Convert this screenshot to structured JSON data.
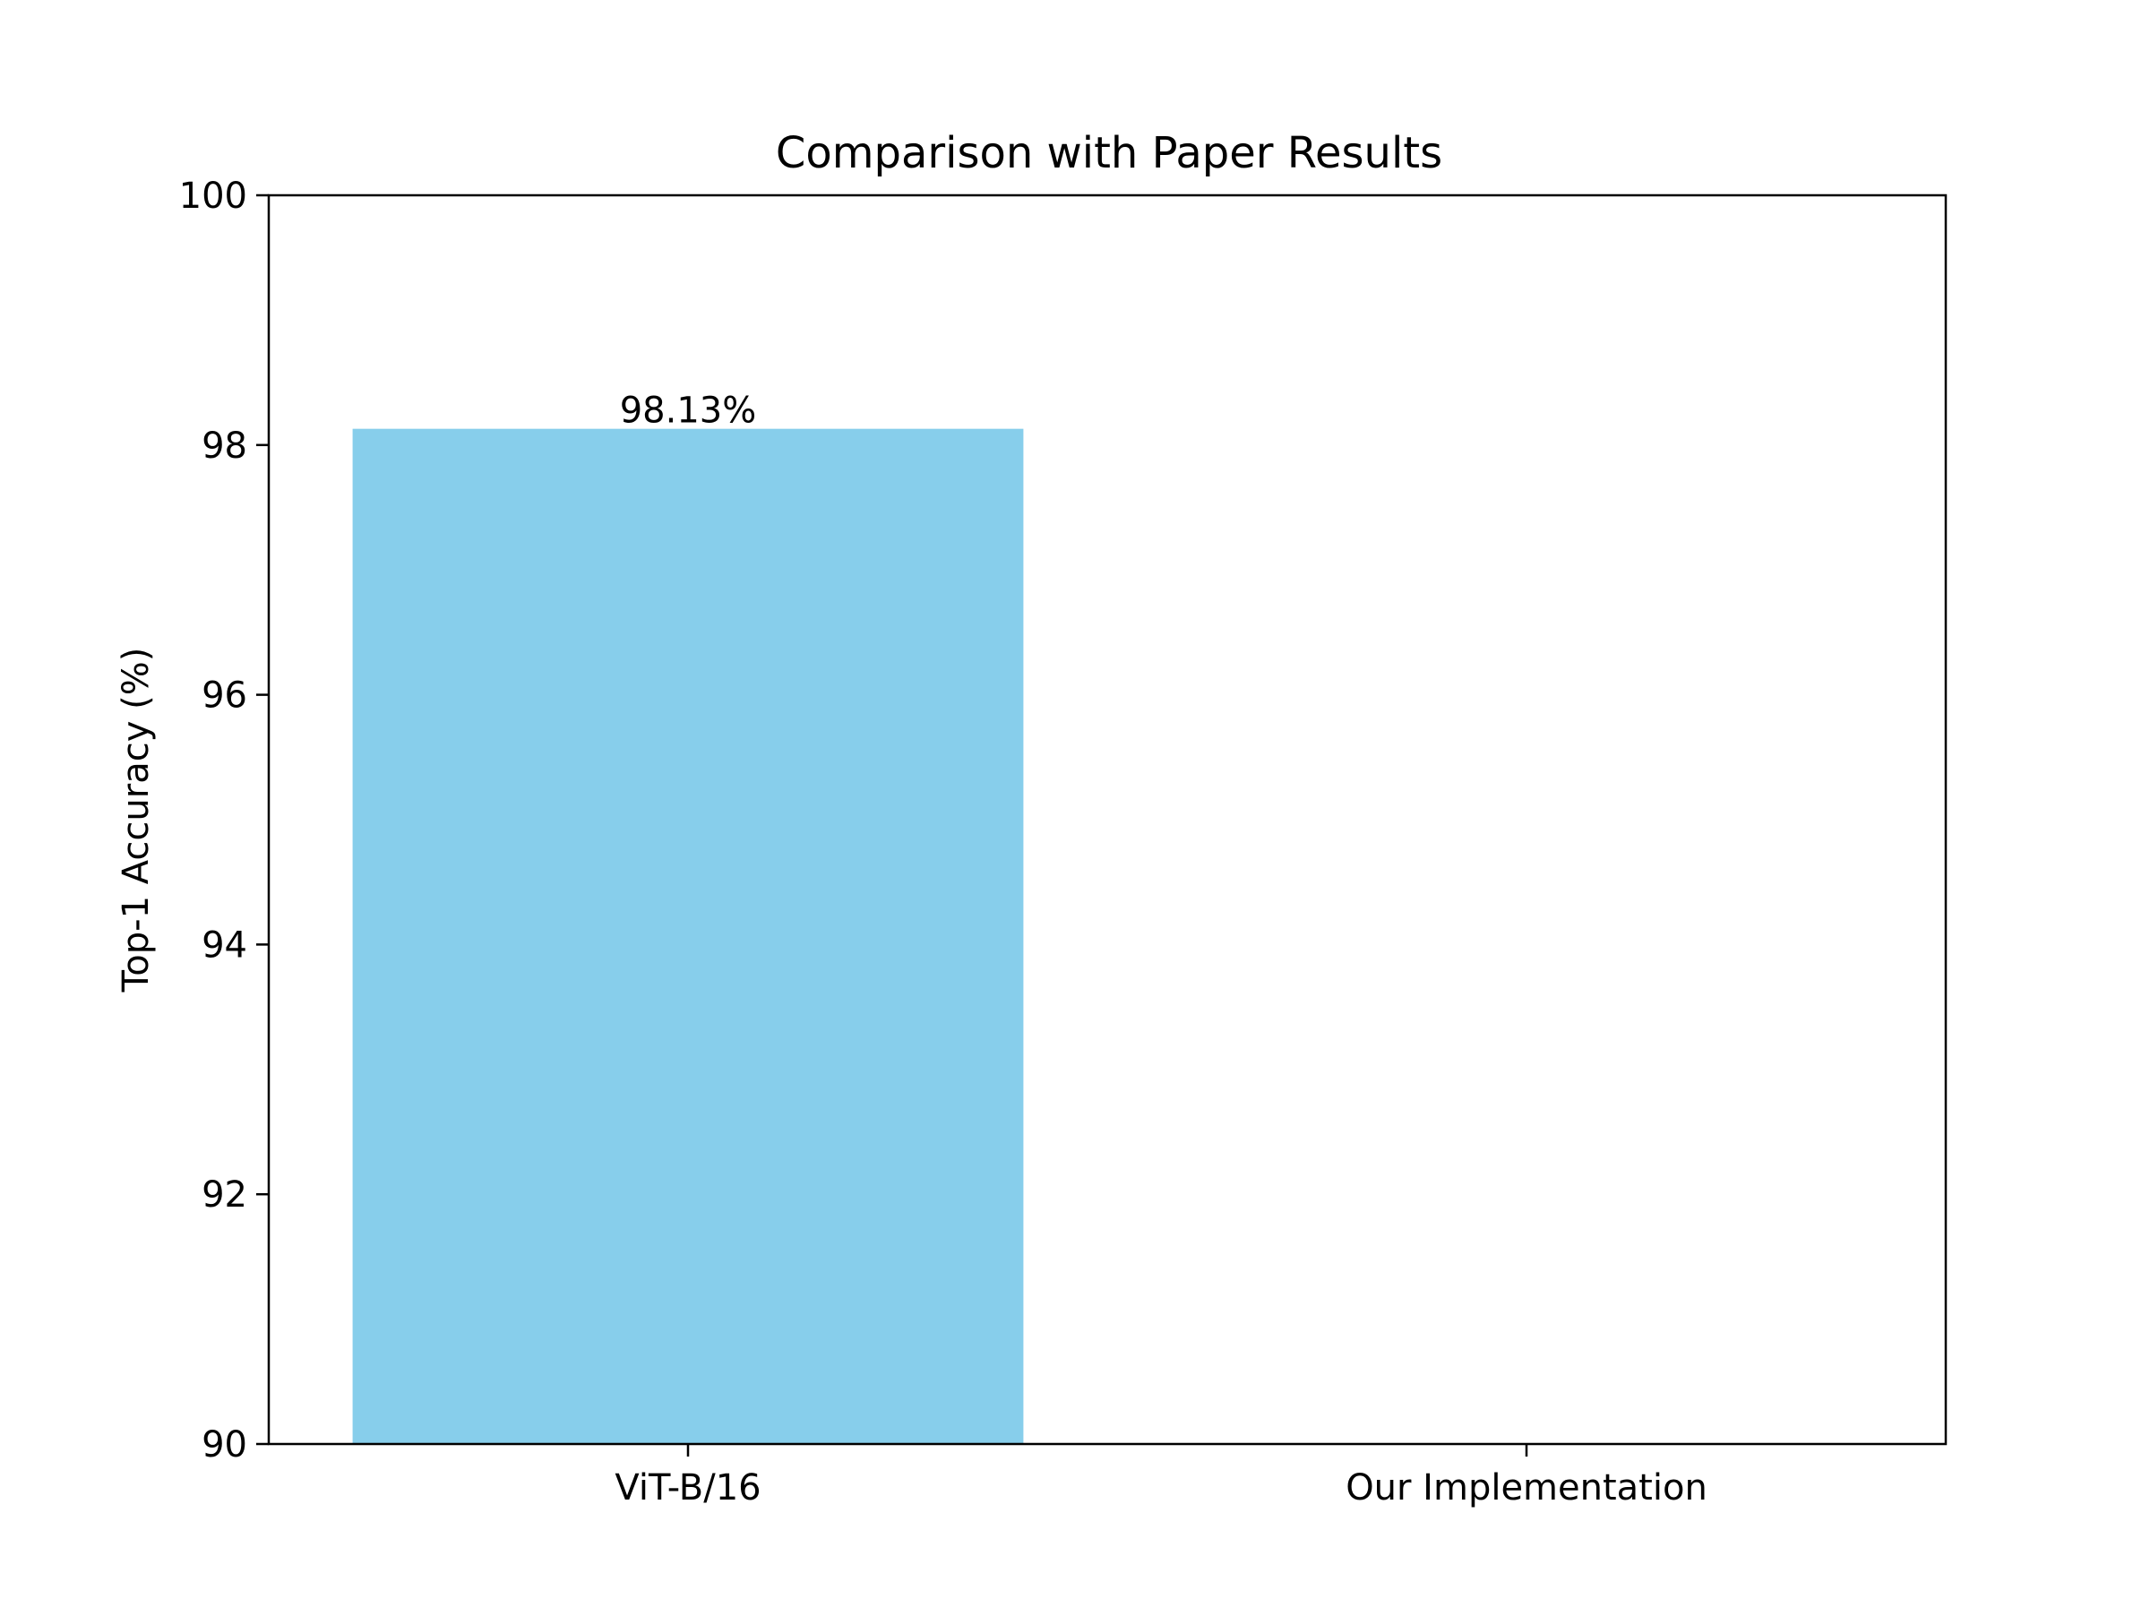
{
  "chart_data": {
    "type": "bar",
    "title": "Comparison with Paper Results",
    "xlabel": "",
    "ylabel": "Top-1 Accuracy (%)",
    "categories": [
      "ViT-B/16",
      "Our Implementation"
    ],
    "values": [
      98.13,
      null
    ],
    "data_labels": [
      "98.13%",
      ""
    ],
    "ylim": [
      90,
      100
    ],
    "yticks": [
      90,
      92,
      94,
      96,
      98,
      100
    ],
    "ytick_labels": [
      "90",
      "92",
      "94",
      "96",
      "98",
      "100"
    ],
    "bar_color": "#87CEEB",
    "grid": false,
    "legend": "none"
  }
}
